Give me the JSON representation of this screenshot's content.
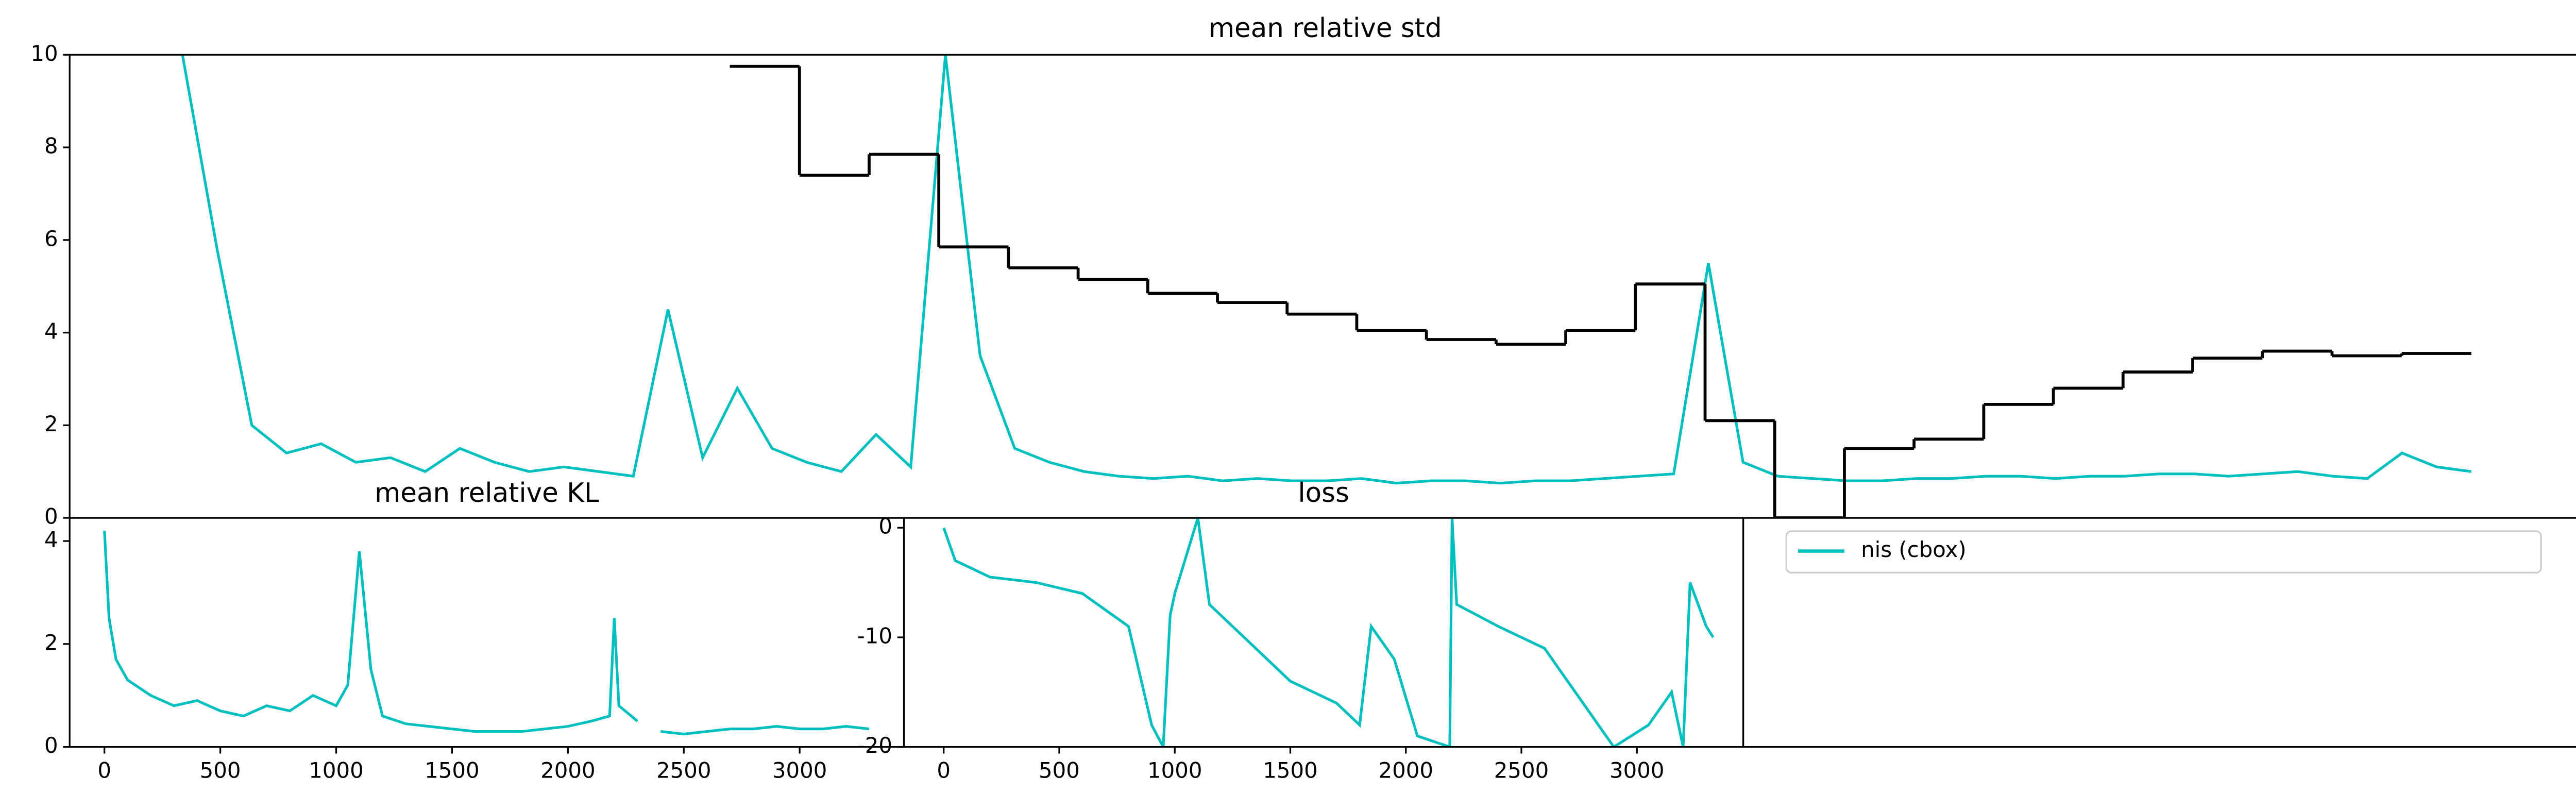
{
  "chart_data": [
    {
      "type": "step-line",
      "title": "mean relative std",
      "ylim": [
        0,
        10
      ],
      "yticks": [
        0,
        2,
        4,
        6,
        8,
        10
      ],
      "series": [
        {
          "color": "#00bfbf",
          "values": [
            10,
            5.8,
            2.0,
            1.4,
            1.6,
            1.2,
            1.3,
            1.0,
            1.5,
            1.2,
            1.0,
            1.1,
            1.0,
            0.9,
            4.5,
            1.3,
            2.8,
            1.5,
            1.2,
            1.0,
            1.8,
            1.1,
            10,
            3.5,
            1.5,
            1.2,
            1.0,
            0.9,
            0.85,
            0.9,
            0.8,
            0.85,
            0.8,
            0.8,
            0.85,
            0.75,
            0.8,
            0.8,
            0.75,
            0.8,
            0.8,
            0.85,
            0.9,
            0.95,
            5.5,
            1.2,
            0.9,
            0.85,
            0.8,
            0.8,
            0.85,
            0.85,
            0.9,
            0.9,
            0.85,
            0.9,
            0.9,
            0.95,
            0.95,
            0.9,
            0.95,
            1.0,
            0.9,
            0.85,
            1.4,
            1.1,
            1.0
          ]
        },
        {
          "color": "#000000",
          "values": [
            9.75,
            7.4,
            7.85,
            5.85,
            5.4,
            5.15,
            4.85,
            4.65,
            4.4,
            4.05,
            3.85,
            3.75,
            4.05,
            5.05,
            2.1,
            0,
            1.5,
            1.7,
            2.45,
            2.8,
            3.15,
            3.45,
            3.6,
            3.5,
            3.55
          ]
        }
      ]
    },
    {
      "type": "line",
      "title": "mean relative KL",
      "xlim": [
        -150,
        3450
      ],
      "xticks": [
        0,
        500,
        1000,
        1500,
        2000,
        2500,
        3000
      ],
      "ylim": [
        0,
        4.45
      ],
      "yticks": [
        0,
        2,
        4
      ],
      "x": [
        0,
        20,
        50,
        100,
        200,
        300,
        400,
        500,
        600,
        700,
        800,
        900,
        1000,
        1050,
        1100,
        1150,
        1200,
        1300,
        1400,
        1500,
        1600,
        1700,
        1800,
        1900,
        2000,
        2100,
        2180,
        2200,
        2220,
        2300,
        2350,
        2400,
        2500,
        2600,
        2700,
        2800,
        2900,
        3000,
        3100,
        3200,
        3300
      ],
      "series": [
        {
          "color": "#00bfbf",
          "values": [
            4.2,
            2.5,
            1.7,
            1.3,
            1.0,
            0.8,
            0.9,
            0.7,
            0.6,
            0.8,
            0.7,
            1.0,
            0.8,
            1.2,
            3.8,
            1.5,
            0.6,
            0.45,
            0.4,
            0.35,
            0.3,
            0.3,
            0.3,
            0.35,
            0.4,
            0.5,
            0.6,
            2.5,
            0.8,
            0.5,
            null,
            0.3,
            0.25,
            0.3,
            0.35,
            0.35,
            0.4,
            0.35,
            0.35,
            0.4,
            0.35
          ]
        }
      ]
    },
    {
      "type": "line",
      "title": "loss",
      "xlim": [
        -172,
        3460
      ],
      "xticks": [
        0,
        500,
        1000,
        1500,
        2000,
        2500,
        3000
      ],
      "ylim": [
        -20,
        0.9
      ],
      "yticks": [
        -20,
        -10,
        0
      ],
      "x": [
        0,
        50,
        200,
        400,
        600,
        800,
        900,
        950,
        980,
        1000,
        1100,
        1150,
        1300,
        1500,
        1700,
        1800,
        1850,
        1950,
        2050,
        2190,
        2200,
        2220,
        2400,
        2600,
        2800,
        2900,
        3050,
        3150,
        3200,
        3230,
        3300,
        3330
      ],
      "series": [
        {
          "color": "#00bfbf",
          "values": [
            0,
            -3,
            -4.5,
            -5,
            -6,
            -9,
            -18,
            -20,
            -8,
            -6,
            0.9,
            -7,
            -10,
            -14,
            -16,
            -18,
            -9,
            -12,
            -19,
            -20,
            0.9,
            -7,
            -9,
            -11,
            -17,
            -20,
            -18,
            -15,
            -20,
            -5,
            -9,
            -10
          ]
        }
      ]
    },
    {
      "type": "legend",
      "series": [
        {
          "name": "nis (cbox)",
          "color": "#00bfbf"
        }
      ]
    }
  ]
}
